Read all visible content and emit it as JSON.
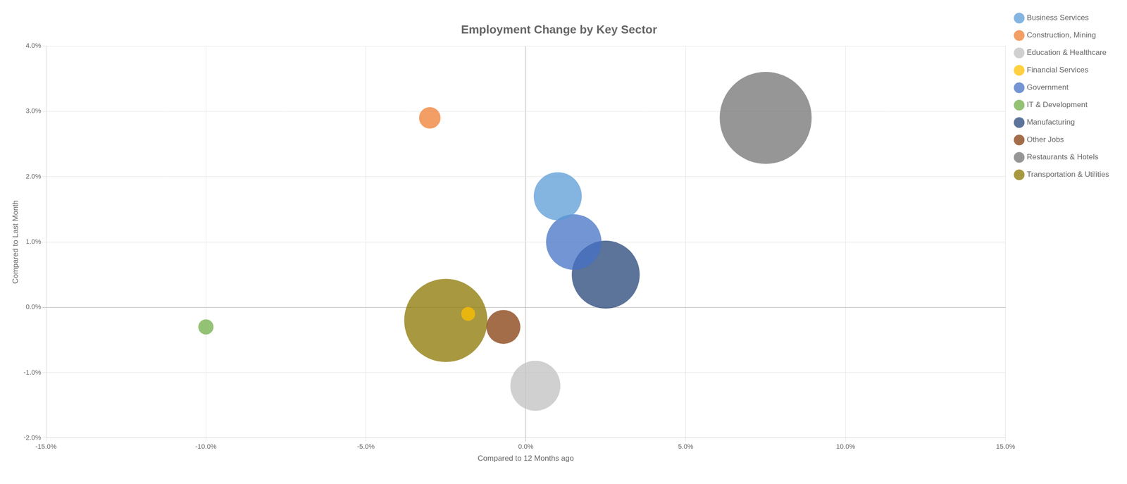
{
  "chart_data": {
    "type": "bubble",
    "title": "Employment Change by Key Sector",
    "xlabel": "Compared to 12 Months ago",
    "ylabel": "Compared to Last Month",
    "xlim": [
      -0.15,
      0.15
    ],
    "ylim": [
      -0.02,
      0.04
    ],
    "xticks": [
      {
        "value": -0.15,
        "label": "-15.0%"
      },
      {
        "value": -0.1,
        "label": "-10.0%"
      },
      {
        "value": -0.05,
        "label": "-5.0%"
      },
      {
        "value": 0.0,
        "label": "0.0%"
      },
      {
        "value": 0.05,
        "label": "5.0%"
      },
      {
        "value": 0.1,
        "label": "10.0%"
      },
      {
        "value": 0.15,
        "label": "15.0%"
      }
    ],
    "yticks": [
      {
        "value": -0.02,
        "label": "-2.0%"
      },
      {
        "value": -0.01,
        "label": "-1.0%"
      },
      {
        "value": 0.0,
        "label": "0.0%"
      },
      {
        "value": 0.01,
        "label": "1.0%"
      },
      {
        "value": 0.02,
        "label": "2.0%"
      },
      {
        "value": 0.03,
        "label": "3.0%"
      },
      {
        "value": 0.04,
        "label": "4.0%"
      }
    ],
    "grid": true,
    "legend": "right",
    "series": [
      {
        "name": "Business Services",
        "color": "#5b9bd5",
        "x": [
          0.01
        ],
        "values": [
          0.017
        ],
        "size": [
          6000
        ]
      },
      {
        "name": "Construction, Mining",
        "color": "#ed7d31",
        "x": [
          -0.03
        ],
        "values": [
          0.029
        ],
        "size": [
          1200
        ]
      },
      {
        "name": "Education & Healthcare",
        "color": "#c0c0c0",
        "x": [
          0.003
        ],
        "values": [
          -0.012
        ],
        "size": [
          6500
        ]
      },
      {
        "name": "Financial Services",
        "color": "#ffc000",
        "x": [
          -0.018
        ],
        "values": [
          -0.001
        ],
        "size": [
          500
        ]
      },
      {
        "name": "Government",
        "color": "#4472c4",
        "x": [
          0.015
        ],
        "values": [
          0.01
        ],
        "size": [
          8000
        ]
      },
      {
        "name": "IT & Development",
        "color": "#70ad47",
        "x": [
          -0.1
        ],
        "values": [
          -0.003
        ],
        "size": [
          600
        ]
      },
      {
        "name": "Manufacturing",
        "color": "#264478",
        "x": [
          0.025
        ],
        "values": [
          0.005
        ],
        "size": [
          12000
        ]
      },
      {
        "name": "Other Jobs",
        "color": "#843c0c",
        "x": [
          -0.007
        ],
        "values": [
          -0.003
        ],
        "size": [
          3000
        ]
      },
      {
        "name": "Restaurants & Hotels",
        "color": "#737373",
        "x": [
          0.075
        ],
        "values": [
          0.029
        ],
        "size": [
          22000
        ]
      },
      {
        "name": "Transportation & Utilities",
        "color": "#8b7500",
        "x": [
          -0.025
        ],
        "values": [
          -0.002
        ],
        "size": [
          18000
        ]
      }
    ]
  }
}
